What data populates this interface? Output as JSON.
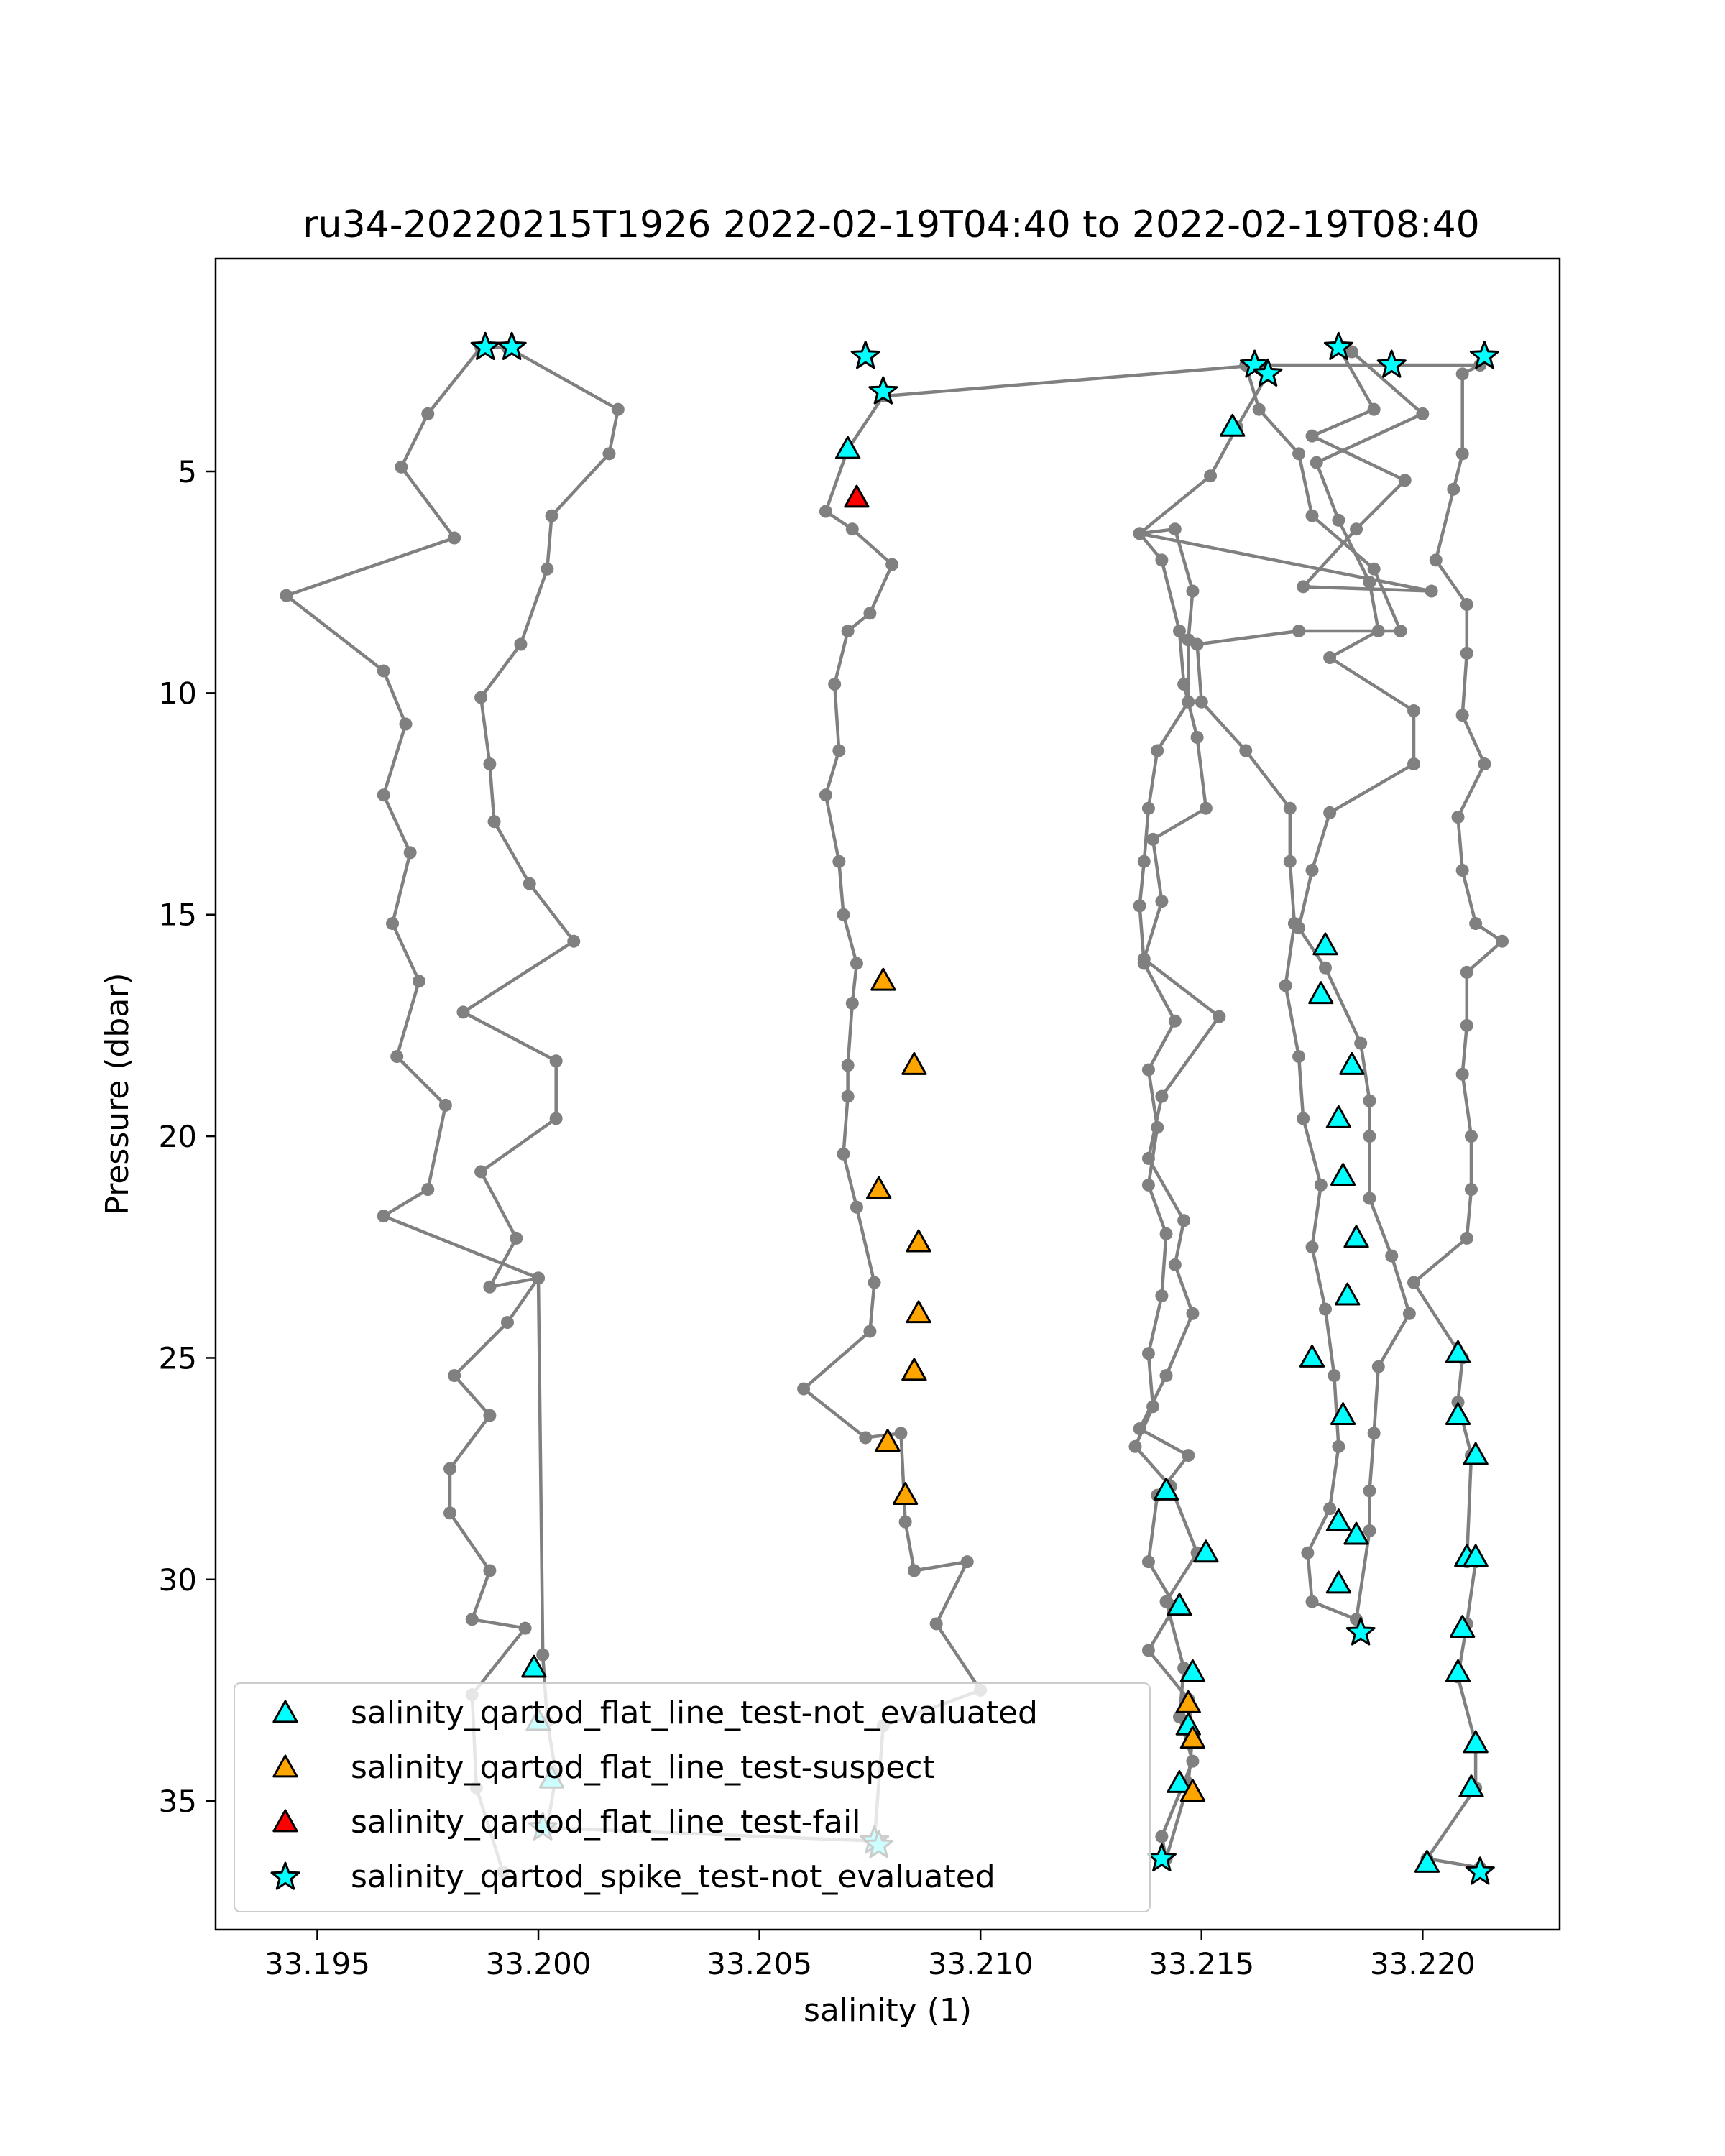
{
  "chart_data": {
    "type": "scatter",
    "title": "ru34-20220215T1926 2022-02-19T04:40 to 2022-02-19T08:40",
    "xlabel": "salinity (1)",
    "ylabel": "Pressure (dbar)",
    "xlim": [
      33.1927,
      33.2231
    ],
    "ylim": [
      37.9,
      0.2
    ],
    "y_inverted": true,
    "xticks": [
      "33.195",
      "33.200",
      "33.205",
      "33.210",
      "33.215",
      "33.220"
    ],
    "yticks": [
      "5",
      "10",
      "15",
      "20",
      "25",
      "30",
      "35"
    ],
    "grid": false,
    "legend_position": "lower-left",
    "colors": {
      "profile_line": "#808080",
      "not_evaluated": "#00ffff",
      "suspect": "#ffa500",
      "fail": "#ff0000",
      "marker_edge": "#000000"
    },
    "profile": [
      [
        33.1992,
        36.6
      ],
      [
        33.1986,
        34.7
      ],
      [
        33.1985,
        32.6
      ],
      [
        33.1997,
        31.1
      ],
      [
        33.1985,
        30.9
      ],
      [
        33.1989,
        29.8
      ],
      [
        33.198,
        28.5
      ],
      [
        33.198,
        27.5
      ],
      [
        33.1989,
        26.3
      ],
      [
        33.1981,
        25.4
      ],
      [
        33.1993,
        24.2
      ],
      [
        33.2,
        23.2
      ],
      [
        33.1989,
        23.4
      ],
      [
        33.1995,
        22.3
      ],
      [
        33.1987,
        20.8
      ],
      [
        33.2004,
        19.6
      ],
      [
        33.2004,
        18.3
      ],
      [
        33.1983,
        17.2
      ],
      [
        33.2008,
        15.6
      ],
      [
        33.1998,
        14.3
      ],
      [
        33.199,
        12.9
      ],
      [
        33.1989,
        11.6
      ],
      [
        33.1987,
        10.1
      ],
      [
        33.1996,
        8.9
      ],
      [
        33.2002,
        7.2
      ],
      [
        33.2003,
        6.0
      ],
      [
        33.2016,
        4.6
      ],
      [
        33.2018,
        3.6
      ],
      [
        33.1993,
        2.2
      ],
      [
        33.1987,
        2.2
      ],
      [
        33.1975,
        3.7
      ],
      [
        33.1969,
        4.9
      ],
      [
        33.1981,
        6.5
      ],
      [
        33.1943,
        7.8
      ],
      [
        33.1965,
        9.5
      ],
      [
        33.197,
        10.7
      ],
      [
        33.1965,
        12.3
      ],
      [
        33.1971,
        13.6
      ],
      [
        33.1967,
        15.2
      ],
      [
        33.1973,
        16.5
      ],
      [
        33.1968,
        18.2
      ],
      [
        33.1979,
        19.3
      ],
      [
        33.1975,
        21.2
      ],
      [
        33.1965,
        21.8
      ],
      [
        33.2,
        23.2
      ],
      [
        33.2001,
        31.7
      ],
      [
        33.2002,
        33.2
      ],
      [
        33.2004,
        34.4
      ],
      [
        33.2002,
        35.6
      ],
      [
        33.2076,
        35.9
      ],
      [
        33.2078,
        33.3
      ],
      [
        33.21,
        32.5
      ],
      [
        33.209,
        31.0
      ],
      [
        33.2097,
        29.6
      ],
      [
        33.2085,
        29.8
      ],
      [
        33.2083,
        28.7
      ],
      [
        33.2082,
        26.7
      ],
      [
        33.2074,
        26.8
      ],
      [
        33.206,
        25.7
      ],
      [
        33.2075,
        24.4
      ],
      [
        33.2076,
        23.3
      ],
      [
        33.2072,
        21.6
      ],
      [
        33.2069,
        20.4
      ],
      [
        33.207,
        19.1
      ],
      [
        33.207,
        18.4
      ],
      [
        33.2071,
        17.0
      ],
      [
        33.2072,
        16.1
      ],
      [
        33.2069,
        15.0
      ],
      [
        33.2068,
        13.8
      ],
      [
        33.2065,
        12.3
      ],
      [
        33.2068,
        11.3
      ],
      [
        33.2067,
        9.8
      ],
      [
        33.207,
        8.6
      ],
      [
        33.2075,
        8.2
      ],
      [
        33.208,
        7.1
      ],
      [
        33.2071,
        6.3
      ],
      [
        33.2065,
        5.9
      ],
      [
        33.207,
        4.5
      ],
      [
        33.2078,
        3.3
      ],
      [
        33.2163,
        2.6
      ],
      [
        33.2165,
        2.8
      ],
      [
        33.2158,
        4.0
      ],
      [
        33.2152,
        5.1
      ],
      [
        33.2136,
        6.4
      ],
      [
        33.2144,
        6.3
      ],
      [
        33.2148,
        7.7
      ],
      [
        33.2147,
        8.8
      ],
      [
        33.2147,
        10.2
      ],
      [
        33.214,
        11.3
      ],
      [
        33.2138,
        12.6
      ],
      [
        33.2137,
        13.8
      ],
      [
        33.2136,
        14.8
      ],
      [
        33.2137,
        16.1
      ],
      [
        33.2144,
        17.4
      ],
      [
        33.2138,
        18.5
      ],
      [
        33.214,
        19.8
      ],
      [
        33.2138,
        21.1
      ],
      [
        33.2142,
        22.2
      ],
      [
        33.2141,
        23.6
      ],
      [
        33.2138,
        24.9
      ],
      [
        33.2139,
        26.1
      ],
      [
        33.2135,
        27.0
      ],
      [
        33.2143,
        27.9
      ],
      [
        33.2149,
        29.4
      ],
      [
        33.2142,
        30.5
      ],
      [
        33.2146,
        32.0
      ],
      [
        33.2145,
        33.1
      ],
      [
        33.2148,
        34.1
      ],
      [
        33.2141,
        35.8
      ],
      [
        33.2142,
        36.3
      ],
      [
        33.2147,
        34.6
      ],
      [
        33.2148,
        33.5
      ],
      [
        33.2147,
        32.7
      ],
      [
        33.2138,
        31.6
      ],
      [
        33.2144,
        30.6
      ],
      [
        33.2138,
        29.6
      ],
      [
        33.214,
        28.1
      ],
      [
        33.2147,
        27.2
      ],
      [
        33.2136,
        26.6
      ],
      [
        33.2142,
        25.4
      ],
      [
        33.2148,
        24.0
      ],
      [
        33.2144,
        22.9
      ],
      [
        33.2146,
        21.9
      ],
      [
        33.2138,
        20.5
      ],
      [
        33.2141,
        19.1
      ],
      [
        33.2154,
        17.3
      ],
      [
        33.2137,
        16.0
      ],
      [
        33.2141,
        14.7
      ],
      [
        33.2139,
        13.3
      ],
      [
        33.2151,
        12.6
      ],
      [
        33.2149,
        11.0
      ],
      [
        33.2146,
        9.8
      ],
      [
        33.2145,
        8.6
      ],
      [
        33.2141,
        7.0
      ],
      [
        33.2136,
        6.4
      ],
      [
        33.2202,
        7.7
      ],
      [
        33.2173,
        7.6
      ],
      [
        33.2185,
        6.3
      ],
      [
        33.2196,
        5.2
      ],
      [
        33.2175,
        4.2
      ],
      [
        33.2189,
        3.6
      ],
      [
        33.2181,
        2.2
      ],
      [
        33.2184,
        2.3
      ],
      [
        33.22,
        3.7
      ],
      [
        33.2176,
        4.8
      ],
      [
        33.2181,
        6.1
      ],
      [
        33.2188,
        7.5
      ],
      [
        33.219,
        8.6
      ],
      [
        33.2179,
        9.2
      ],
      [
        33.2198,
        10.4
      ],
      [
        33.2198,
        11.6
      ],
      [
        33.2179,
        12.7
      ],
      [
        33.2175,
        14.0
      ],
      [
        33.2172,
        15.3
      ],
      [
        33.2178,
        16.2
      ],
      [
        33.2186,
        17.9
      ],
      [
        33.2188,
        19.2
      ],
      [
        33.2188,
        20.0
      ],
      [
        33.2188,
        21.4
      ],
      [
        33.2193,
        22.7
      ],
      [
        33.2197,
        24.0
      ],
      [
        33.219,
        25.2
      ],
      [
        33.2189,
        26.7
      ],
      [
        33.2188,
        28.0
      ],
      [
        33.2188,
        28.9
      ],
      [
        33.2185,
        30.9
      ],
      [
        33.2175,
        30.5
      ],
      [
        33.2174,
        29.4
      ],
      [
        33.2179,
        28.4
      ],
      [
        33.2181,
        27.0
      ],
      [
        33.218,
        25.4
      ],
      [
        33.2178,
        23.9
      ],
      [
        33.2175,
        22.5
      ],
      [
        33.2177,
        21.1
      ],
      [
        33.2173,
        19.6
      ],
      [
        33.2172,
        18.2
      ],
      [
        33.2169,
        16.6
      ],
      [
        33.2171,
        15.2
      ],
      [
        33.217,
        13.8
      ],
      [
        33.217,
        12.6
      ],
      [
        33.216,
        11.3
      ],
      [
        33.215,
        10.2
      ],
      [
        33.2149,
        8.9
      ],
      [
        33.2172,
        8.6
      ],
      [
        33.2195,
        8.6
      ],
      [
        33.2189,
        7.2
      ],
      [
        33.2175,
        6.0
      ],
      [
        33.2172,
        4.6
      ],
      [
        33.2163,
        3.6
      ],
      [
        33.216,
        2.6
      ],
      [
        33.2213,
        2.6
      ],
      [
        33.2209,
        2.8
      ],
      [
        33.2209,
        4.6
      ],
      [
        33.2207,
        5.4
      ],
      [
        33.2203,
        7.0
      ],
      [
        33.221,
        8.0
      ],
      [
        33.221,
        9.1
      ],
      [
        33.2209,
        10.5
      ],
      [
        33.2214,
        11.6
      ],
      [
        33.2208,
        12.8
      ],
      [
        33.2209,
        14.0
      ],
      [
        33.2212,
        15.2
      ],
      [
        33.2218,
        15.6
      ],
      [
        33.221,
        16.3
      ],
      [
        33.221,
        17.5
      ],
      [
        33.2209,
        18.6
      ],
      [
        33.2211,
        20.0
      ],
      [
        33.2211,
        21.2
      ],
      [
        33.221,
        22.3
      ],
      [
        33.2198,
        23.3
      ],
      [
        33.2209,
        25.0
      ],
      [
        33.2208,
        26.0
      ],
      [
        33.2211,
        27.2
      ],
      [
        33.221,
        29.6
      ],
      [
        33.2212,
        29.6
      ],
      [
        33.221,
        31.0
      ],
      [
        33.2208,
        32.2
      ],
      [
        33.2212,
        33.7
      ],
      [
        33.2212,
        34.7
      ],
      [
        33.2201,
        36.3
      ],
      [
        33.2213,
        36.5
      ]
    ],
    "series": [
      {
        "name": "salinity_qartod_flat_line_test-not_evaluated",
        "marker": "triangle",
        "color": "#00ffff",
        "points": [
          [
            33.1999,
            32.0
          ],
          [
            33.2,
            33.2
          ],
          [
            33.2003,
            34.5
          ],
          [
            33.207,
            4.5
          ],
          [
            33.2157,
            4.0
          ],
          [
            33.2142,
            28.0
          ],
          [
            33.2151,
            29.4
          ],
          [
            33.2145,
            30.6
          ],
          [
            33.2148,
            32.1
          ],
          [
            33.2147,
            33.3
          ],
          [
            33.2145,
            34.6
          ],
          [
            33.2178,
            15.7
          ],
          [
            33.2177,
            16.8
          ],
          [
            33.2184,
            18.4
          ],
          [
            33.2181,
            19.6
          ],
          [
            33.2182,
            20.9
          ],
          [
            33.2185,
            22.3
          ],
          [
            33.2183,
            23.6
          ],
          [
            33.2175,
            25.0
          ],
          [
            33.2182,
            26.3
          ],
          [
            33.2181,
            28.7
          ],
          [
            33.2185,
            29.0
          ],
          [
            33.2181,
            30.1
          ],
          [
            33.2208,
            24.9
          ],
          [
            33.2208,
            26.3
          ],
          [
            33.2212,
            27.2
          ],
          [
            33.221,
            29.5
          ],
          [
            33.2212,
            29.5
          ],
          [
            33.2209,
            31.1
          ],
          [
            33.2208,
            32.1
          ],
          [
            33.2212,
            33.7
          ],
          [
            33.2211,
            34.7
          ],
          [
            33.2201,
            36.4
          ]
        ]
      },
      {
        "name": "salinity_qartod_flat_line_test-suspect",
        "marker": "triangle",
        "color": "#ffa500",
        "points": [
          [
            33.2078,
            16.5
          ],
          [
            33.2085,
            18.4
          ],
          [
            33.2077,
            21.2
          ],
          [
            33.2086,
            22.4
          ],
          [
            33.2086,
            24.0
          ],
          [
            33.2085,
            25.3
          ],
          [
            33.2079,
            26.9
          ],
          [
            33.2083,
            28.1
          ],
          [
            33.2147,
            32.8
          ],
          [
            33.2148,
            33.6
          ],
          [
            33.2148,
            34.8
          ]
        ]
      },
      {
        "name": "salinity_qartod_flat_line_test-fail",
        "marker": "triangle",
        "color": "#ff0000",
        "points": [
          [
            33.2072,
            5.6
          ]
        ]
      },
      {
        "name": "salinity_qartod_spike_test-not_evaluated",
        "marker": "star",
        "color": "#00ffff",
        "points": [
          [
            33.1988,
            2.2
          ],
          [
            33.1994,
            2.2
          ],
          [
            33.2001,
            35.6
          ],
          [
            33.2074,
            2.4
          ],
          [
            33.2078,
            3.2
          ],
          [
            33.2076,
            35.9
          ],
          [
            33.2077,
            36.0
          ],
          [
            33.2162,
            2.6
          ],
          [
            33.2165,
            2.8
          ],
          [
            33.2181,
            2.2
          ],
          [
            33.2193,
            2.6
          ],
          [
            33.2214,
            2.4
          ],
          [
            33.2186,
            31.2
          ],
          [
            33.2141,
            36.3
          ],
          [
            33.2213,
            36.6
          ]
        ]
      }
    ]
  }
}
